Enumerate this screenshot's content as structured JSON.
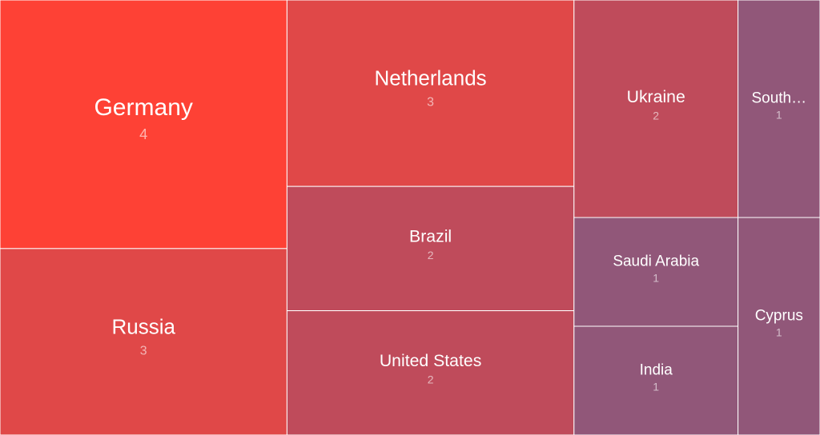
{
  "chart_data": {
    "type": "treemap",
    "categories": [
      "Germany",
      "Russia",
      "Netherlands",
      "Brazil",
      "United States",
      "Ukraine",
      "Saudi Arabia",
      "India",
      "South…",
      "Cyprus"
    ],
    "values": [
      4,
      3,
      3,
      2,
      2,
      2,
      1,
      1,
      1,
      1
    ],
    "colors": [
      "#fe4135",
      "#e04848",
      "#e04848",
      "#bf4b5b",
      "#bf4b5b",
      "#bf4b5b",
      "#915779",
      "#915779",
      "#915779",
      "#915779"
    ]
  }
}
